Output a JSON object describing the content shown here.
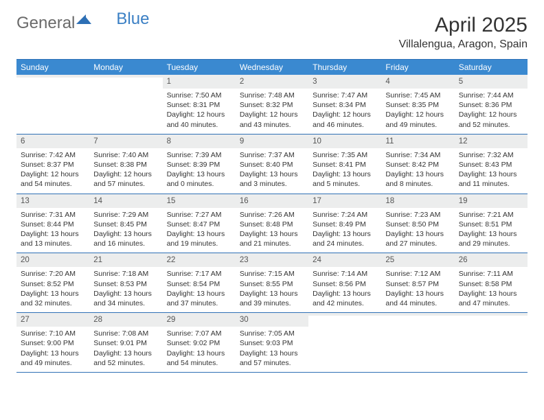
{
  "logo": {
    "text1": "General",
    "text2": "Blue"
  },
  "title": "April 2025",
  "location": "Villalengua, Aragon, Spain",
  "day_headers": [
    "Sunday",
    "Monday",
    "Tuesday",
    "Wednesday",
    "Thursday",
    "Friday",
    "Saturday"
  ],
  "colors": {
    "header_bg": "#3a89d0",
    "header_text": "#ffffff",
    "border": "#2d6fb5",
    "daynum_bg": "#eceded",
    "body_text": "#333333"
  },
  "weeks": [
    [
      {
        "n": "",
        "sr": "",
        "ss": "",
        "dl": ""
      },
      {
        "n": "",
        "sr": "",
        "ss": "",
        "dl": ""
      },
      {
        "n": "1",
        "sr": "Sunrise: 7:50 AM",
        "ss": "Sunset: 8:31 PM",
        "dl": "Daylight: 12 hours and 40 minutes."
      },
      {
        "n": "2",
        "sr": "Sunrise: 7:48 AM",
        "ss": "Sunset: 8:32 PM",
        "dl": "Daylight: 12 hours and 43 minutes."
      },
      {
        "n": "3",
        "sr": "Sunrise: 7:47 AM",
        "ss": "Sunset: 8:34 PM",
        "dl": "Daylight: 12 hours and 46 minutes."
      },
      {
        "n": "4",
        "sr": "Sunrise: 7:45 AM",
        "ss": "Sunset: 8:35 PM",
        "dl": "Daylight: 12 hours and 49 minutes."
      },
      {
        "n": "5",
        "sr": "Sunrise: 7:44 AM",
        "ss": "Sunset: 8:36 PM",
        "dl": "Daylight: 12 hours and 52 minutes."
      }
    ],
    [
      {
        "n": "6",
        "sr": "Sunrise: 7:42 AM",
        "ss": "Sunset: 8:37 PM",
        "dl": "Daylight: 12 hours and 54 minutes."
      },
      {
        "n": "7",
        "sr": "Sunrise: 7:40 AM",
        "ss": "Sunset: 8:38 PM",
        "dl": "Daylight: 12 hours and 57 minutes."
      },
      {
        "n": "8",
        "sr": "Sunrise: 7:39 AM",
        "ss": "Sunset: 8:39 PM",
        "dl": "Daylight: 13 hours and 0 minutes."
      },
      {
        "n": "9",
        "sr": "Sunrise: 7:37 AM",
        "ss": "Sunset: 8:40 PM",
        "dl": "Daylight: 13 hours and 3 minutes."
      },
      {
        "n": "10",
        "sr": "Sunrise: 7:35 AM",
        "ss": "Sunset: 8:41 PM",
        "dl": "Daylight: 13 hours and 5 minutes."
      },
      {
        "n": "11",
        "sr": "Sunrise: 7:34 AM",
        "ss": "Sunset: 8:42 PM",
        "dl": "Daylight: 13 hours and 8 minutes."
      },
      {
        "n": "12",
        "sr": "Sunrise: 7:32 AM",
        "ss": "Sunset: 8:43 PM",
        "dl": "Daylight: 13 hours and 11 minutes."
      }
    ],
    [
      {
        "n": "13",
        "sr": "Sunrise: 7:31 AM",
        "ss": "Sunset: 8:44 PM",
        "dl": "Daylight: 13 hours and 13 minutes."
      },
      {
        "n": "14",
        "sr": "Sunrise: 7:29 AM",
        "ss": "Sunset: 8:45 PM",
        "dl": "Daylight: 13 hours and 16 minutes."
      },
      {
        "n": "15",
        "sr": "Sunrise: 7:27 AM",
        "ss": "Sunset: 8:47 PM",
        "dl": "Daylight: 13 hours and 19 minutes."
      },
      {
        "n": "16",
        "sr": "Sunrise: 7:26 AM",
        "ss": "Sunset: 8:48 PM",
        "dl": "Daylight: 13 hours and 21 minutes."
      },
      {
        "n": "17",
        "sr": "Sunrise: 7:24 AM",
        "ss": "Sunset: 8:49 PM",
        "dl": "Daylight: 13 hours and 24 minutes."
      },
      {
        "n": "18",
        "sr": "Sunrise: 7:23 AM",
        "ss": "Sunset: 8:50 PM",
        "dl": "Daylight: 13 hours and 27 minutes."
      },
      {
        "n": "19",
        "sr": "Sunrise: 7:21 AM",
        "ss": "Sunset: 8:51 PM",
        "dl": "Daylight: 13 hours and 29 minutes."
      }
    ],
    [
      {
        "n": "20",
        "sr": "Sunrise: 7:20 AM",
        "ss": "Sunset: 8:52 PM",
        "dl": "Daylight: 13 hours and 32 minutes."
      },
      {
        "n": "21",
        "sr": "Sunrise: 7:18 AM",
        "ss": "Sunset: 8:53 PM",
        "dl": "Daylight: 13 hours and 34 minutes."
      },
      {
        "n": "22",
        "sr": "Sunrise: 7:17 AM",
        "ss": "Sunset: 8:54 PM",
        "dl": "Daylight: 13 hours and 37 minutes."
      },
      {
        "n": "23",
        "sr": "Sunrise: 7:15 AM",
        "ss": "Sunset: 8:55 PM",
        "dl": "Daylight: 13 hours and 39 minutes."
      },
      {
        "n": "24",
        "sr": "Sunrise: 7:14 AM",
        "ss": "Sunset: 8:56 PM",
        "dl": "Daylight: 13 hours and 42 minutes."
      },
      {
        "n": "25",
        "sr": "Sunrise: 7:12 AM",
        "ss": "Sunset: 8:57 PM",
        "dl": "Daylight: 13 hours and 44 minutes."
      },
      {
        "n": "26",
        "sr": "Sunrise: 7:11 AM",
        "ss": "Sunset: 8:58 PM",
        "dl": "Daylight: 13 hours and 47 minutes."
      }
    ],
    [
      {
        "n": "27",
        "sr": "Sunrise: 7:10 AM",
        "ss": "Sunset: 9:00 PM",
        "dl": "Daylight: 13 hours and 49 minutes."
      },
      {
        "n": "28",
        "sr": "Sunrise: 7:08 AM",
        "ss": "Sunset: 9:01 PM",
        "dl": "Daylight: 13 hours and 52 minutes."
      },
      {
        "n": "29",
        "sr": "Sunrise: 7:07 AM",
        "ss": "Sunset: 9:02 PM",
        "dl": "Daylight: 13 hours and 54 minutes."
      },
      {
        "n": "30",
        "sr": "Sunrise: 7:05 AM",
        "ss": "Sunset: 9:03 PM",
        "dl": "Daylight: 13 hours and 57 minutes."
      },
      {
        "n": "",
        "sr": "",
        "ss": "",
        "dl": ""
      },
      {
        "n": "",
        "sr": "",
        "ss": "",
        "dl": ""
      },
      {
        "n": "",
        "sr": "",
        "ss": "",
        "dl": ""
      }
    ]
  ]
}
